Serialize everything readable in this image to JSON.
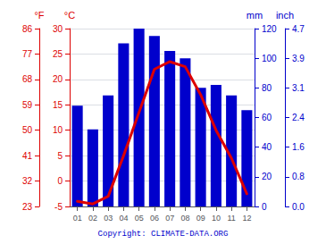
{
  "chart_data": {
    "type": "bar",
    "categories": [
      "01",
      "02",
      "03",
      "04",
      "05",
      "06",
      "07",
      "08",
      "09",
      "10",
      "11",
      "12"
    ],
    "series": [
      {
        "type": "bar",
        "color": "#0000cc",
        "axis": "y2",
        "values": [
          68,
          52,
          75,
          110,
          120,
          115,
          105,
          100,
          80,
          82,
          75,
          65
        ]
      },
      {
        "type": "line",
        "color": "#dd0000",
        "values": [
          -4.0,
          -4.5,
          -3.0,
          5.0,
          13.5,
          22.0,
          23.5,
          22.5,
          17.0,
          10.0,
          4.5,
          -2.5
        ]
      }
    ],
    "ylabel": "°C",
    "ylim": [
      -5,
      30
    ],
    "yticks": [
      -5,
      0,
      5,
      10,
      15,
      20,
      25,
      30
    ],
    "y_alt_label": "°F",
    "y_alt_ticks": [
      {
        "value": -5,
        "label": "23"
      },
      {
        "value": 0,
        "label": "32"
      },
      {
        "value": 5,
        "label": "41"
      },
      {
        "value": 10,
        "label": "50"
      },
      {
        "value": 15,
        "label": "59"
      },
      {
        "value": 20,
        "label": "68"
      },
      {
        "value": 25,
        "label": "77"
      },
      {
        "value": 30,
        "label": "86"
      }
    ],
    "y2label": "mm",
    "y2lim": [
      0,
      120
    ],
    "y2ticks": [
      0,
      20,
      40,
      60,
      80,
      100,
      120
    ],
    "y2_alt_label": "inch",
    "y2_alt_ticks": [
      {
        "value": 0,
        "label": "0.0"
      },
      {
        "value": 20,
        "label": "0.8"
      },
      {
        "value": 40,
        "label": "1.6"
      },
      {
        "value": 60,
        "label": "2.4"
      },
      {
        "value": 80,
        "label": "3.1"
      },
      {
        "value": 100,
        "label": "3.9"
      },
      {
        "value": 120,
        "label": "4.7"
      }
    ],
    "grid": true,
    "annotation": "Copyright: CLIMATE-DATA.ORG"
  }
}
